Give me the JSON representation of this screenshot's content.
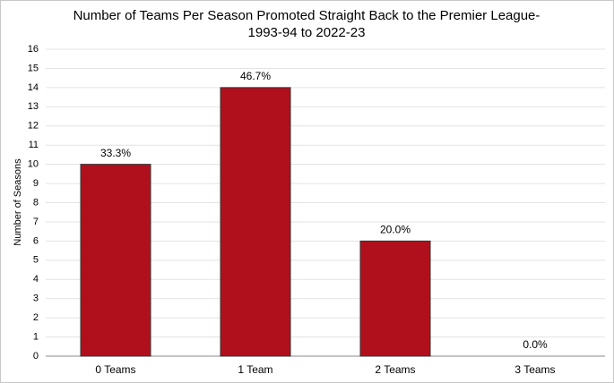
{
  "chart_data": {
    "type": "bar",
    "title": [
      "Number of Teams Per Season Promoted Straight Back to the Premier League-",
      "1993-94 to 2022-23"
    ],
    "y_label": "Number of Seasons",
    "categories": [
      "0 Teams",
      "1 Team",
      "2 Teams",
      "3 Teams"
    ],
    "values": [
      10,
      14,
      6,
      0
    ],
    "data_labels": [
      "33.3%",
      "46.7%",
      "20.0%",
      "0.0%"
    ],
    "color": "#b0101c",
    "ylim": [
      0,
      16
    ],
    "yticks": [
      0,
      1,
      2,
      3,
      4,
      5,
      6,
      7,
      8,
      9,
      10,
      11,
      12,
      13,
      14,
      15,
      16
    ],
    "grid": true
  }
}
